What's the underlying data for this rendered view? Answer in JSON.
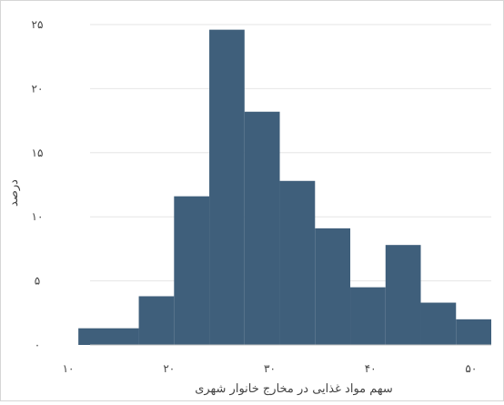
{
  "chart_data": {
    "type": "bar",
    "title": "",
    "xlabel": "سهم مواد غذایی در مخارج خانوار شهری",
    "ylabel": "درصد",
    "bins": [
      {
        "x0": 11,
        "x1": 17,
        "value": 1.3
      },
      {
        "x0": 17,
        "x1": 20.5,
        "value": 3.8
      },
      {
        "x0": 20.5,
        "x1": 24,
        "value": 11.6
      },
      {
        "x0": 24,
        "x1": 27.5,
        "value": 24.6
      },
      {
        "x0": 27.5,
        "x1": 31,
        "value": 18.2
      },
      {
        "x0": 31,
        "x1": 34.5,
        "value": 12.8
      },
      {
        "x0": 34.5,
        "x1": 38,
        "value": 9.1
      },
      {
        "x0": 38,
        "x1": 41.5,
        "value": 4.5
      },
      {
        "x0": 41.5,
        "x1": 45,
        "value": 7.8
      },
      {
        "x0": 45,
        "x1": 48.5,
        "value": 3.3
      },
      {
        "x0": 48.5,
        "x1": 52,
        "value": 2.0
      }
    ],
    "xlim": [
      9,
      52
    ],
    "ylim": [
      0,
      25
    ],
    "x_ticks": [
      {
        "value": 10,
        "label": "۱۰"
      },
      {
        "value": 20,
        "label": "۲۰"
      },
      {
        "value": 30,
        "label": "۳۰"
      },
      {
        "value": 40,
        "label": "۴۰"
      },
      {
        "value": 50,
        "label": "۵۰"
      }
    ],
    "y_ticks": [
      {
        "value": 0,
        "label": "۰"
      },
      {
        "value": 5,
        "label": "۵"
      },
      {
        "value": 10,
        "label": "۱۰"
      },
      {
        "value": 15,
        "label": "۱۵"
      },
      {
        "value": 20,
        "label": "۲۰"
      },
      {
        "value": 25,
        "label": "۲۵"
      }
    ],
    "grid": true,
    "legend": "none",
    "bar_color": "#3f5f7b",
    "grid_color": "#e6e6e6",
    "axis_color": "#bfbfbf"
  }
}
